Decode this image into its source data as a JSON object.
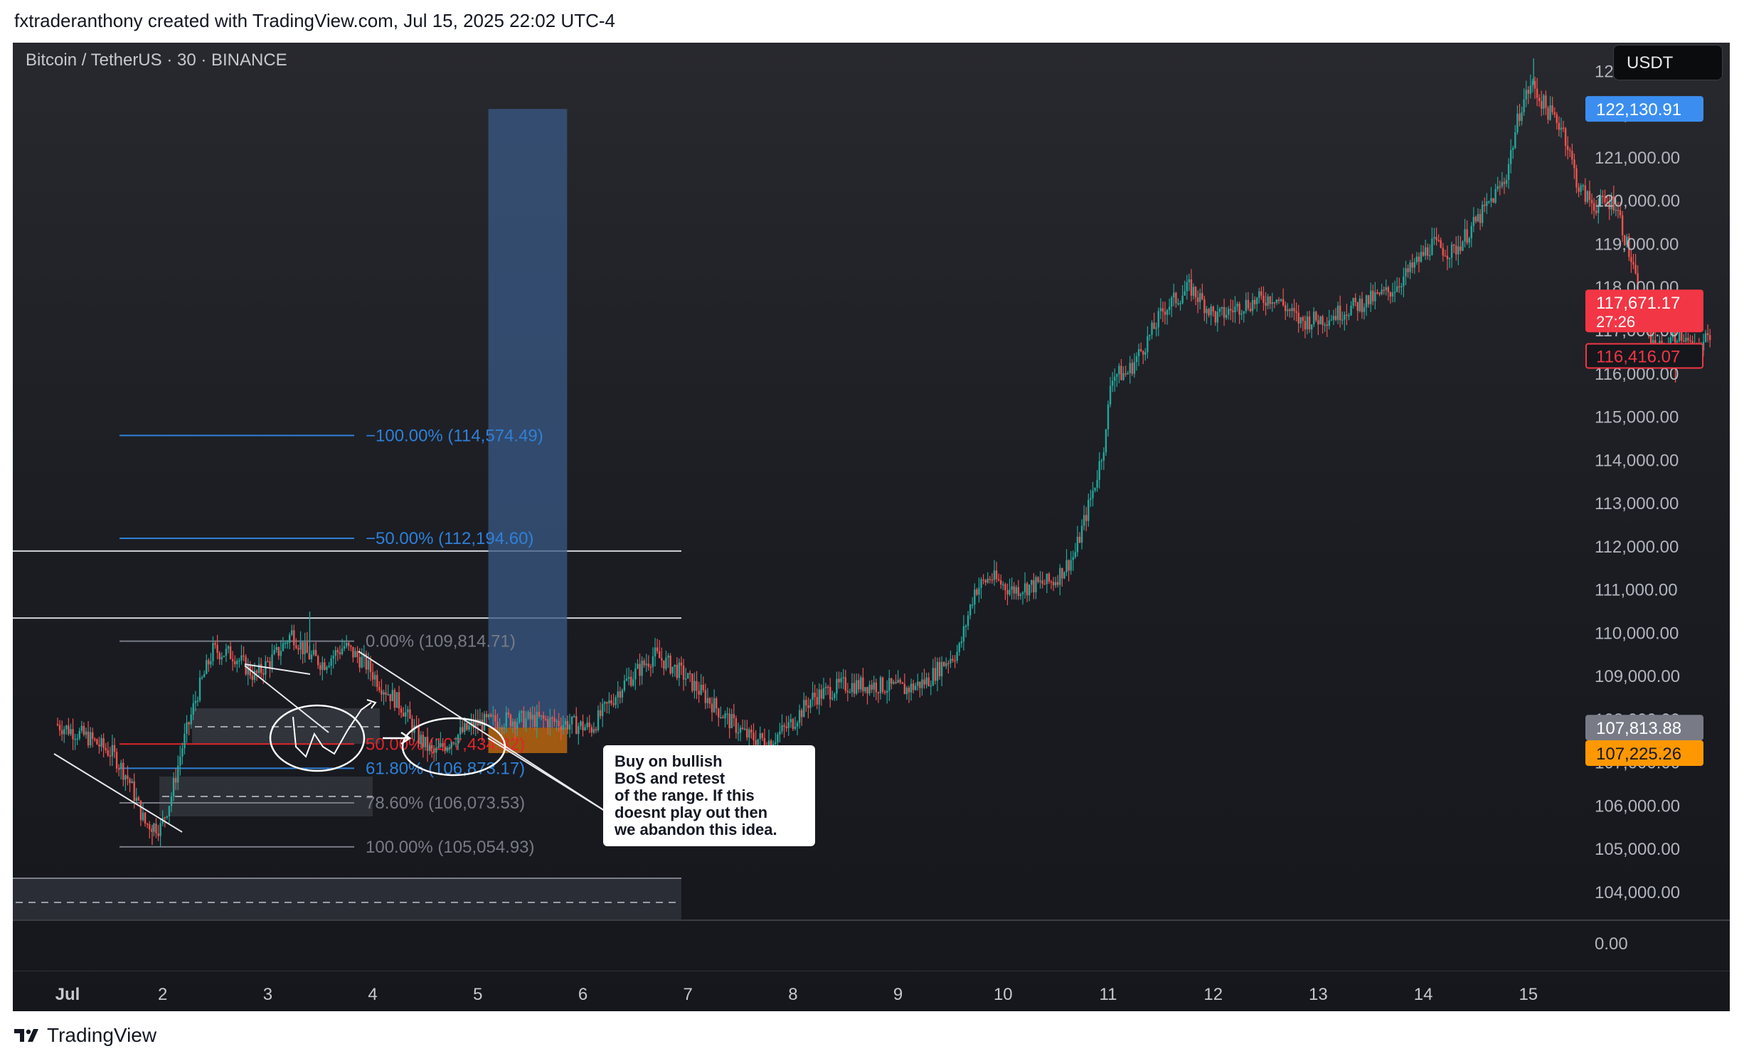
{
  "header": {
    "attribution": "fxtraderanthony created with TradingView.com, Jul 15, 2025 22:02 UTC-4"
  },
  "symbol": {
    "label": "Bitcoin / TetherUS · 30 · BINANCE"
  },
  "currency": {
    "label": "USDT"
  },
  "footer": {
    "brand": "TradingView"
  },
  "colors": {
    "up": "#26a69a",
    "down": "#ef5350",
    "fib_blue": "#2f80d8",
    "fib_gray": "#787b86",
    "fib_red": "#e0242a",
    "position_box": "#3a5a85",
    "orange": "#f7931a"
  },
  "annotation": {
    "text": "Buy on bullish\nBoS and retest\nof the range. If this\ndoesnt play out then\nwe abandon this idea."
  },
  "price_badges": [
    {
      "value": "122,130.91",
      "bg": "#3b8ef0",
      "fg": "#ffffff",
      "price": 122130.91
    },
    {
      "value": "117,671.17",
      "sub": "27:26",
      "bg": "#f23645",
      "fg": "#ffffff",
      "price": 117671.17
    },
    {
      "value": "116,416.07",
      "bg": "#15171c",
      "fg": "#f23645",
      "border": "#f23645",
      "price": 116416.07
    },
    {
      "value": "107,813.88",
      "bg": "#787b86",
      "fg": "#ffffff",
      "price": 107813.88
    },
    {
      "value": "107,225.26",
      "bg": "#ff9800",
      "fg": "#131722",
      "price": 107225.26
    }
  ],
  "chart_data": {
    "type": "candlestick",
    "title": "Bitcoin / TetherUS · 30 · BINANCE",
    "ylim": [
      103700,
      123300
    ],
    "y_ticks": [
      "104,000.00",
      "105,000.00",
      "106,000.00",
      "107,000.00",
      "108,000.00",
      "109,000.00",
      "110,000.00",
      "111,000.00",
      "112,000.00",
      "113,000.00",
      "114,000.00",
      "115,000.00",
      "116,000.00",
      "117,000.00",
      "118,000.00",
      "119,000.00",
      "120,000.00",
      "121,000.00",
      "122,000.00",
      "123,000.00"
    ],
    "volume_axis_label": "0.00",
    "x_ticks": [
      "Jul",
      "2",
      "3",
      "4",
      "5",
      "6",
      "7",
      "8",
      "9",
      "10",
      "11",
      "12",
      "13",
      "14",
      "15"
    ],
    "x_domain_days": [
      1.0,
      16.5
    ],
    "price_path": [
      [
        1.0,
        107900
      ],
      [
        1.3,
        107600
      ],
      [
        1.55,
        107200
      ],
      [
        1.7,
        106600
      ],
      [
        1.85,
        105600
      ],
      [
        2.0,
        105500
      ],
      [
        2.1,
        106200
      ],
      [
        2.2,
        107300
      ],
      [
        2.35,
        108600
      ],
      [
        2.5,
        109600
      ],
      [
        2.7,
        109500
      ],
      [
        2.9,
        109000
      ],
      [
        3.1,
        109500
      ],
      [
        3.25,
        110000
      ],
      [
        3.4,
        109500
      ],
      [
        3.55,
        109300
      ],
      [
        3.75,
        109700
      ],
      [
        3.95,
        109300
      ],
      [
        4.1,
        108800
      ],
      [
        4.3,
        108300
      ],
      [
        4.45,
        107600
      ],
      [
        4.6,
        107200
      ],
      [
        4.8,
        107600
      ],
      [
        5.0,
        107900
      ],
      [
        5.3,
        108000
      ],
      [
        5.6,
        108000
      ],
      [
        5.9,
        107900
      ],
      [
        6.1,
        107800
      ],
      [
        6.4,
        108800
      ],
      [
        6.7,
        109500
      ],
      [
        6.95,
        109100
      ],
      [
        7.2,
        108500
      ],
      [
        7.4,
        108000
      ],
      [
        7.6,
        107600
      ],
      [
        7.8,
        107500
      ],
      [
        8.0,
        107900
      ],
      [
        8.2,
        108500
      ],
      [
        8.5,
        108800
      ],
      [
        8.8,
        108800
      ],
      [
        9.1,
        108700
      ],
      [
        9.3,
        108900
      ],
      [
        9.45,
        109300
      ],
      [
        9.6,
        109600
      ],
      [
        9.75,
        111000
      ],
      [
        9.9,
        111300
      ],
      [
        10.1,
        111000
      ],
      [
        10.3,
        111100
      ],
      [
        10.5,
        111200
      ],
      [
        10.7,
        111800
      ],
      [
        10.9,
        113500
      ],
      [
        11.0,
        114600
      ],
      [
        11.05,
        116000
      ],
      [
        11.2,
        116000
      ],
      [
        11.4,
        116800
      ],
      [
        11.55,
        117500
      ],
      [
        11.8,
        118000
      ],
      [
        12.05,
        117300
      ],
      [
        12.3,
        117600
      ],
      [
        12.6,
        117800
      ],
      [
        12.85,
        117200
      ],
      [
        13.1,
        117300
      ],
      [
        13.4,
        117600
      ],
      [
        13.7,
        117900
      ],
      [
        13.9,
        118400
      ],
      [
        14.1,
        119000
      ],
      [
        14.3,
        118800
      ],
      [
        14.55,
        119600
      ],
      [
        14.8,
        120500
      ],
      [
        14.95,
        122200
      ],
      [
        15.05,
        122700
      ],
      [
        15.2,
        122100
      ],
      [
        15.35,
        121700
      ],
      [
        15.5,
        120300
      ],
      [
        15.65,
        119900
      ],
      [
        15.85,
        120000
      ],
      [
        16.0,
        118600
      ],
      [
        16.15,
        116900
      ],
      [
        16.3,
        116500
      ],
      [
        16.45,
        117000
      ],
      [
        16.6,
        116500
      ],
      [
        16.75,
        116900
      ]
    ],
    "highs": [
      [
        3.4,
        110500
      ],
      [
        15.05,
        123300
      ]
    ],
    "lows": [
      [
        1.9,
        105100
      ],
      [
        16.4,
        115800
      ]
    ],
    "fib_levels": [
      {
        "label": "−100.00% (114,574.49)",
        "price": 114574.49,
        "color": "blue"
      },
      {
        "label": "−50.00% (112,194.60)",
        "price": 112194.6,
        "color": "blue"
      },
      {
        "label": "0.00% (109,814.71)",
        "price": 109814.71,
        "color": "gray"
      },
      {
        "label": "50.00% (107,434.82)",
        "price": 107434.82,
        "color": "red"
      },
      {
        "label": "61.80% (106,873.17)",
        "price": 106873.17,
        "color": "blue"
      },
      {
        "label": "78.60% (106,073.53)",
        "price": 106073.53,
        "color": "gray"
      },
      {
        "label": "100.00% (105,054.93)",
        "price": 105054.93,
        "color": "gray"
      }
    ],
    "horizontal_lines": [
      111900,
      110350
    ],
    "long_position": {
      "entry": 107813.88,
      "target": 122130.91,
      "stop": 107225.26,
      "x_days": [
        5.1,
        5.85
      ]
    }
  }
}
